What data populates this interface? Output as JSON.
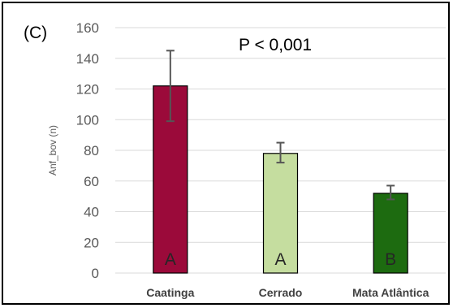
{
  "chart_data": {
    "type": "bar",
    "panel_label": "(C)",
    "annotation": "P < 0,001",
    "ylabel": "Anf_bov (n)",
    "ylim": [
      0,
      160
    ],
    "yticks": [
      0,
      20,
      40,
      60,
      80,
      100,
      120,
      140,
      160
    ],
    "grid": true,
    "categories": [
      "Caatinga",
      "Cerrado",
      "Mata Atlântica"
    ],
    "values": [
      122,
      78,
      52
    ],
    "error_low": [
      99,
      72,
      48
    ],
    "error_high": [
      145,
      85,
      57
    ],
    "group_letters": [
      "A",
      "A",
      "B"
    ],
    "colors": [
      "#9b0a3a",
      "#c5dd9f",
      "#1d6b10"
    ],
    "error_color": "#555555"
  }
}
